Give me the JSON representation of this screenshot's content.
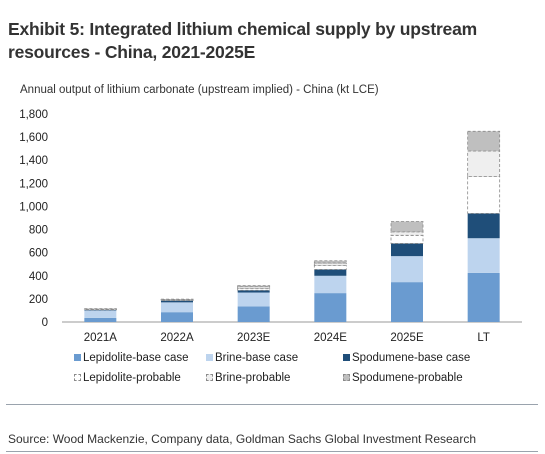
{
  "title": "Exhibit 5: Integrated lithium chemical supply by upstream resources - China, 2021-2025E",
  "source": "Source: Wood Mackenzie, Company data, Goldman Sachs Global Investment Research",
  "colors": {
    "lepidolite_base": "#6a9bd0",
    "brine_base": "#bdd4ee",
    "spodumene_base": "#1f4e79",
    "lepidolite_probable": "#ffffff",
    "brine_probable": "#efefef",
    "spodumene_probable": "#bfbfbf",
    "probable_border": "#8a8a8a"
  },
  "chart_data": {
    "type": "bar",
    "stacked": true,
    "title": "Annual output of lithium carbonate (upstream implied) - China (kt LCE)",
    "categories": [
      "2021A",
      "2022A",
      "2023E",
      "2024E",
      "2025E",
      "LT"
    ],
    "ylim": [
      0,
      1800
    ],
    "yticks": [
      "0",
      "200",
      "400",
      "600",
      "800",
      "1,000",
      "1,200",
      "1,400",
      "1,600",
      "1,800"
    ],
    "grid": false,
    "series": [
      {
        "name": "Lepidolite-base case",
        "values": [
          35,
          85,
          135,
          250,
          345,
          425
        ]
      },
      {
        "name": "Brine-base case",
        "values": [
          65,
          85,
          120,
          150,
          225,
          300
        ]
      },
      {
        "name": "Spodumene-base case",
        "values": [
          5,
          15,
          20,
          55,
          110,
          215
        ]
      },
      {
        "name": "Lepidolite-probable",
        "values": [
          5,
          5,
          15,
          35,
          70,
          320
        ]
      },
      {
        "name": "Brine-probable",
        "values": [
          3,
          5,
          15,
          20,
          30,
          220
        ]
      },
      {
        "name": "Spodumene-probable",
        "values": [
          2,
          3,
          10,
          20,
          90,
          170
        ]
      }
    ]
  }
}
